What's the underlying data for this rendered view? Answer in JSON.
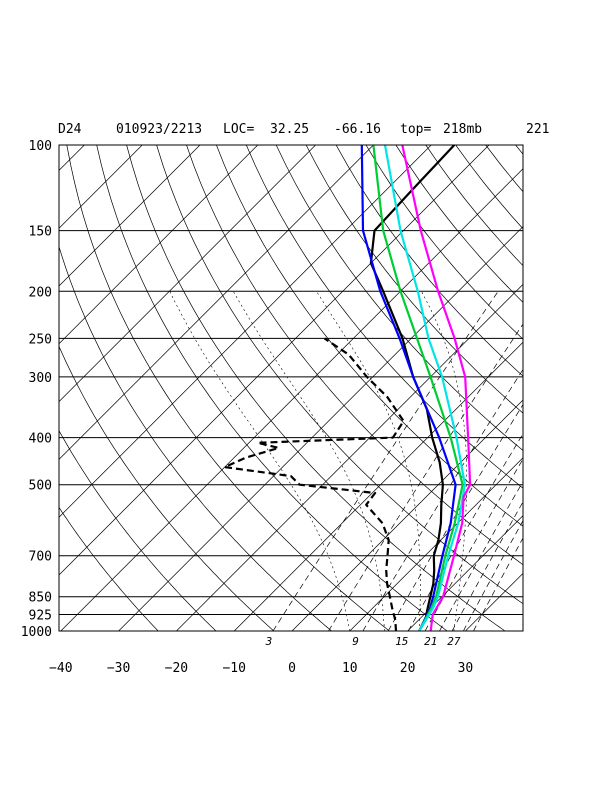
{
  "header": {
    "id": "D24",
    "datetime": "010923/2213",
    "loc_label": "LOC=",
    "lat": "32.25",
    "lon": "-66.16",
    "top_label": "top=",
    "top_value": "218mb",
    "code": "221"
  },
  "chart_data": {
    "type": "line",
    "title": "",
    "xlabel": "",
    "ylabel": "",
    "diagram": "skew-T log-P",
    "y_scale": "log",
    "y_reversed": true,
    "xlim": [
      -40,
      40
    ],
    "ylim_mb": [
      1000,
      100
    ],
    "pressure_levels": [
      100,
      150,
      200,
      250,
      300,
      400,
      500,
      700,
      850,
      925,
      1000
    ],
    "pressure_tick_labels": [
      "100",
      "150",
      "200",
      "250",
      "300",
      "400",
      "500",
      "700",
      "850",
      "925",
      "1000"
    ],
    "temperature_ticks": [
      -40,
      -30,
      -20,
      -10,
      0,
      10,
      20,
      30
    ],
    "temperature_tick_labels": [
      "−40",
      "−30",
      "−20",
      "−10",
      "0",
      "10",
      "20",
      "30"
    ],
    "mixing_ratio_labels": [
      {
        "text": "3",
        "x_at_bottom": -4
      },
      {
        "text": "9",
        "x_at_bottom": 11
      },
      {
        "text": "15",
        "x_at_bottom": 19
      },
      {
        "text": "21",
        "x_at_bottom": 24
      },
      {
        "text": "27",
        "x_at_bottom": 28
      }
    ],
    "series": [
      {
        "style": "black-solid",
        "color": "#000000",
        "points": [
          [
            1000,
            22.0
          ],
          [
            950,
            21.2
          ],
          [
            900,
            19.6
          ],
          [
            850,
            18.0
          ],
          [
            800,
            16.3
          ],
          [
            750,
            14.1
          ],
          [
            700,
            11.5
          ],
          [
            650,
            9.6
          ],
          [
            600,
            7.1
          ],
          [
            550,
            4.0
          ],
          [
            500,
            0.8
          ],
          [
            450,
            -3.6
          ],
          [
            400,
            -9.2
          ],
          [
            350,
            -15.0
          ],
          [
            300,
            -23.0
          ],
          [
            250,
            -31.5
          ],
          [
            200,
            -43.0
          ],
          [
            175,
            -50.0
          ],
          [
            150,
            -55.0
          ],
          [
            125,
            -55.5
          ],
          [
            100,
            -56.0
          ]
        ]
      },
      {
        "style": "black-dashed",
        "color": "#000000",
        "points": [
          [
            1000,
            18.0
          ],
          [
            950,
            16.0
          ],
          [
            900,
            13.5
          ],
          [
            850,
            11.0
          ],
          [
            800,
            8.3
          ],
          [
            750,
            5.8
          ],
          [
            700,
            3.5
          ],
          [
            650,
            1.0
          ],
          [
            600,
            -3.0
          ],
          [
            550,
            -9.0
          ],
          [
            520,
            -9.5
          ],
          [
            500,
            -24.0
          ],
          [
            480,
            -27.0
          ],
          [
            460,
            -40.0
          ],
          [
            440,
            -38.0
          ],
          [
            420,
            -34.0
          ],
          [
            410,
            -38.5
          ],
          [
            400,
            -16.0
          ],
          [
            370,
            -17.0
          ],
          [
            330,
            -24.0
          ],
          [
            300,
            -31.0
          ],
          [
            270,
            -38.0
          ],
          [
            250,
            -45.0
          ]
        ]
      },
      {
        "style": "blue",
        "color": "#0000ff",
        "points": [
          [
            1000,
            22.0
          ],
          [
            900,
            20.0
          ],
          [
            850,
            18.5
          ],
          [
            700,
            13.0
          ],
          [
            600,
            8.8
          ],
          [
            500,
            3.0
          ],
          [
            400,
            -8.0
          ],
          [
            300,
            -23.0
          ],
          [
            250,
            -32.0
          ],
          [
            200,
            -43.5
          ],
          [
            150,
            -57.0
          ],
          [
            100,
            -72.0
          ]
        ]
      },
      {
        "style": "green",
        "color": "#00cc33",
        "points": [
          [
            1000,
            22.0
          ],
          [
            900,
            20.2
          ],
          [
            850,
            19.0
          ],
          [
            700,
            13.5
          ],
          [
            600,
            9.5
          ],
          [
            500,
            4.2
          ],
          [
            400,
            -6.0
          ],
          [
            300,
            -20.0
          ],
          [
            250,
            -29.0
          ],
          [
            200,
            -40.0
          ],
          [
            150,
            -53.5
          ],
          [
            100,
            -70.0
          ]
        ]
      },
      {
        "style": "cyan",
        "color": "#00e5e5",
        "points": [
          [
            1000,
            22.0
          ],
          [
            900,
            20.5
          ],
          [
            850,
            19.3
          ],
          [
            700,
            14.0
          ],
          [
            600,
            10.1
          ],
          [
            500,
            4.6
          ],
          [
            400,
            -5.0
          ],
          [
            300,
            -18.0
          ],
          [
            250,
            -27.0
          ],
          [
            200,
            -37.0
          ],
          [
            150,
            -50.5
          ],
          [
            100,
            -68.0
          ]
        ]
      },
      {
        "style": "magenta",
        "color": "#ff00ff",
        "points": [
          [
            1000,
            24.0
          ],
          [
            925,
            21.5
          ],
          [
            850,
            20.2
          ],
          [
            700,
            15.0
          ],
          [
            600,
            10.8
          ],
          [
            530,
            6.5
          ],
          [
            500,
            5.5
          ],
          [
            400,
            -3.0
          ],
          [
            300,
            -14.0
          ],
          [
            250,
            -22.5
          ],
          [
            200,
            -33.5
          ],
          [
            150,
            -47.0
          ],
          [
            100,
            -65.0
          ]
        ]
      }
    ]
  }
}
